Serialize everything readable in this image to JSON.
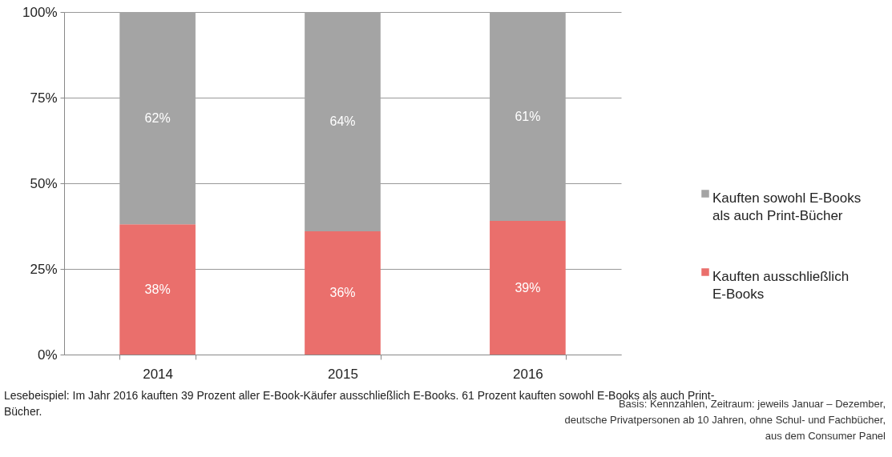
{
  "chart_data": {
    "type": "bar",
    "stacked": true,
    "categories": [
      "2014",
      "2015",
      "2016"
    ],
    "series": [
      {
        "name": "Kauften ausschließlich\nE-Books",
        "color": "#ea6f6c",
        "values": [
          38,
          36,
          39
        ],
        "value_labels": [
          "38%",
          "36%",
          "39%"
        ]
      },
      {
        "name": "Kauften sowohl E-Books\nals auch Print-Bücher",
        "color": "#a4a4a4",
        "values": [
          62,
          64,
          61
        ],
        "value_labels": [
          "62%",
          "64%",
          "61%"
        ]
      }
    ],
    "ylim": [
      0,
      100
    ],
    "yticks": [
      {
        "value": 0,
        "label": "0%"
      },
      {
        "value": 25,
        "label": "25%"
      },
      {
        "value": 50,
        "label": "50%"
      },
      {
        "value": 75,
        "label": "75%"
      },
      {
        "value": 100,
        "label": "100%"
      }
    ],
    "grid": "y",
    "legend": "right",
    "annotations": [
      "Lesebeispiel: Im Jahr 2016 kauften 39 Prozent aller E-Book-Käufer ausschließlich E-Books. 61 Prozent kauften sowohl E-Books als auch Print-\nBücher.",
      "Basis: Kennzahlen, Zeitraum: jeweils Januar – Dezember,\ndeutsche Privatpersonen ab 10 Jahren, ohne Schul- und Fachbücher,\naus dem Consumer Panel"
    ]
  }
}
